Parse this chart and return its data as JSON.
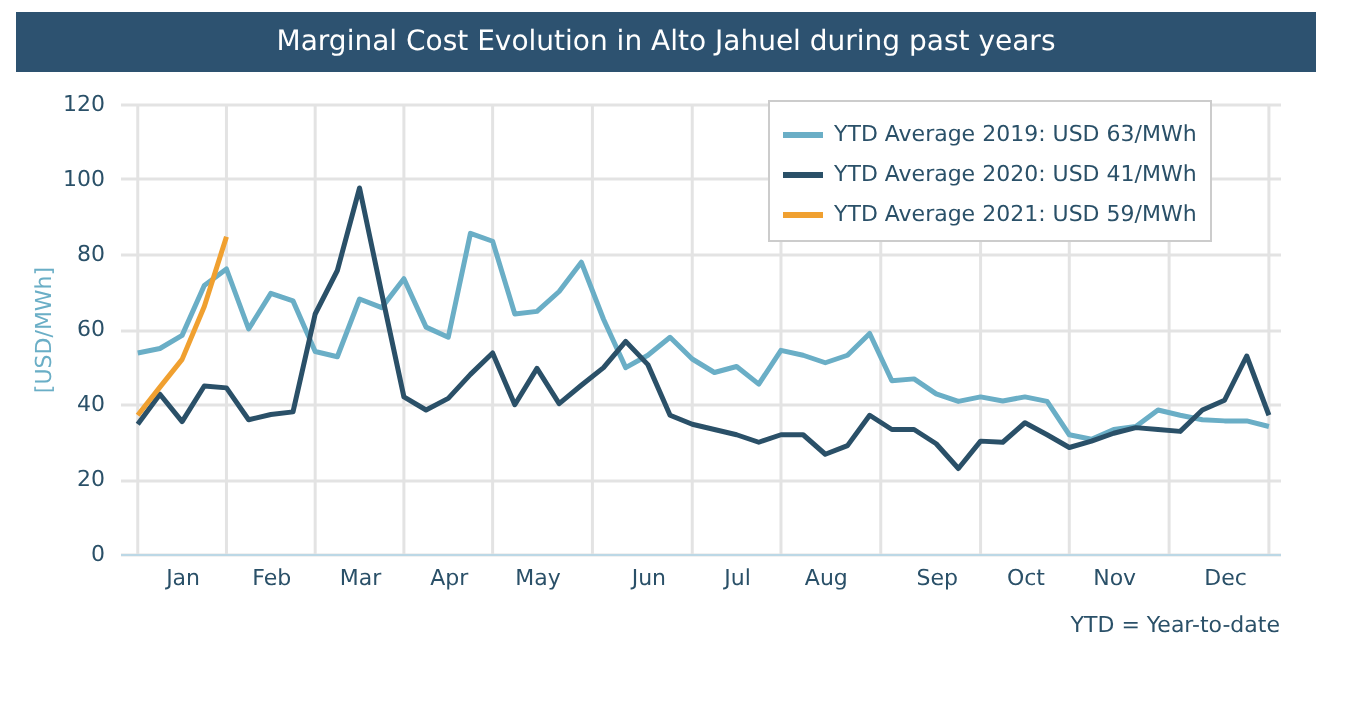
{
  "chart_data": {
    "type": "line",
    "title": "Marginal Cost Evolution in Alto Jahuel during past years",
    "ylabel": "[USD/MWh]",
    "categories": [
      null,
      null,
      "Jan",
      null,
      null,
      null,
      "Feb",
      null,
      null,
      null,
      "Mar",
      null,
      null,
      null,
      "Apr",
      null,
      null,
      null,
      "May",
      null,
      null,
      null,
      null,
      "Jun",
      null,
      null,
      null,
      "Jul",
      null,
      null,
      null,
      "Aug",
      null,
      null,
      null,
      null,
      "Sep",
      null,
      null,
      null,
      "Oct",
      null,
      null,
      null,
      "Nov",
      null,
      null,
      null,
      null,
      "Dec",
      null,
      null
    ],
    "series": [
      {
        "name": "YTD Average 2019: USD 63/MWh",
        "color": "#6aaec6",
        "values": [
          53.6,
          54.8,
          58.3,
          71.6,
          76,
          60,
          69.5,
          67.5,
          54,
          52.6,
          68,
          65.7,
          73.4,
          60.5,
          57.8,
          85.5,
          83.4,
          64,
          64.7,
          70,
          77.8,
          62.6,
          49.7,
          53,
          57.8,
          52,
          48.4,
          50,
          45.3,
          54.3,
          53,
          51,
          53,
          58.8,
          46.2,
          46.7,
          42.7,
          40.7,
          41.9,
          40.8,
          41.9,
          40.7,
          31.8,
          30.6,
          33.2,
          34,
          38.4,
          37,
          35.8,
          35.5,
          35.5,
          34
        ]
      },
      {
        "name": "YTD Average 2020: USD 41/MWh",
        "color": "#2a5068",
        "values": [
          34.6,
          42.6,
          35.3,
          44.8,
          44.3,
          35.8,
          37.2,
          37.9,
          64,
          75.6,
          97.6,
          69.5,
          41.9,
          38.4,
          41.5,
          47.9,
          53.6,
          39.8,
          49.5,
          40.1,
          45,
          49.7,
          56.7,
          50.5,
          37,
          34.6,
          33.2,
          31.8,
          29.8,
          31.8,
          31.8,
          26.6,
          28.9,
          37,
          33.2,
          33.2,
          29.4,
          22.8,
          30.1,
          29.8,
          35,
          31.8,
          28.4,
          30.1,
          32.2,
          33.7,
          33.2,
          32.7,
          38.4,
          41,
          52.8,
          37
        ]
      },
      {
        "name": "YTD Average 2021: USD 59/MWh",
        "color": "#f0a030",
        "values": [
          37,
          44.5,
          51.9,
          66,
          84.6,
          null,
          null,
          null,
          null,
          null,
          null,
          null,
          null,
          null,
          null,
          null,
          null,
          null,
          null,
          null,
          null,
          null,
          null,
          null,
          null,
          null,
          null,
          null,
          null,
          null,
          null,
          null,
          null,
          null,
          null,
          null,
          null,
          null,
          null,
          null,
          null,
          null,
          null,
          null,
          null,
          null,
          null,
          null,
          null,
          null,
          null,
          null
        ]
      }
    ],
    "ylim": [
      0,
      120
    ],
    "yticks": [
      0,
      20,
      40,
      60,
      80,
      100,
      120
    ],
    "grid": true,
    "legend": "top right",
    "annotations": [
      "YTD = Year-to-date"
    ]
  }
}
